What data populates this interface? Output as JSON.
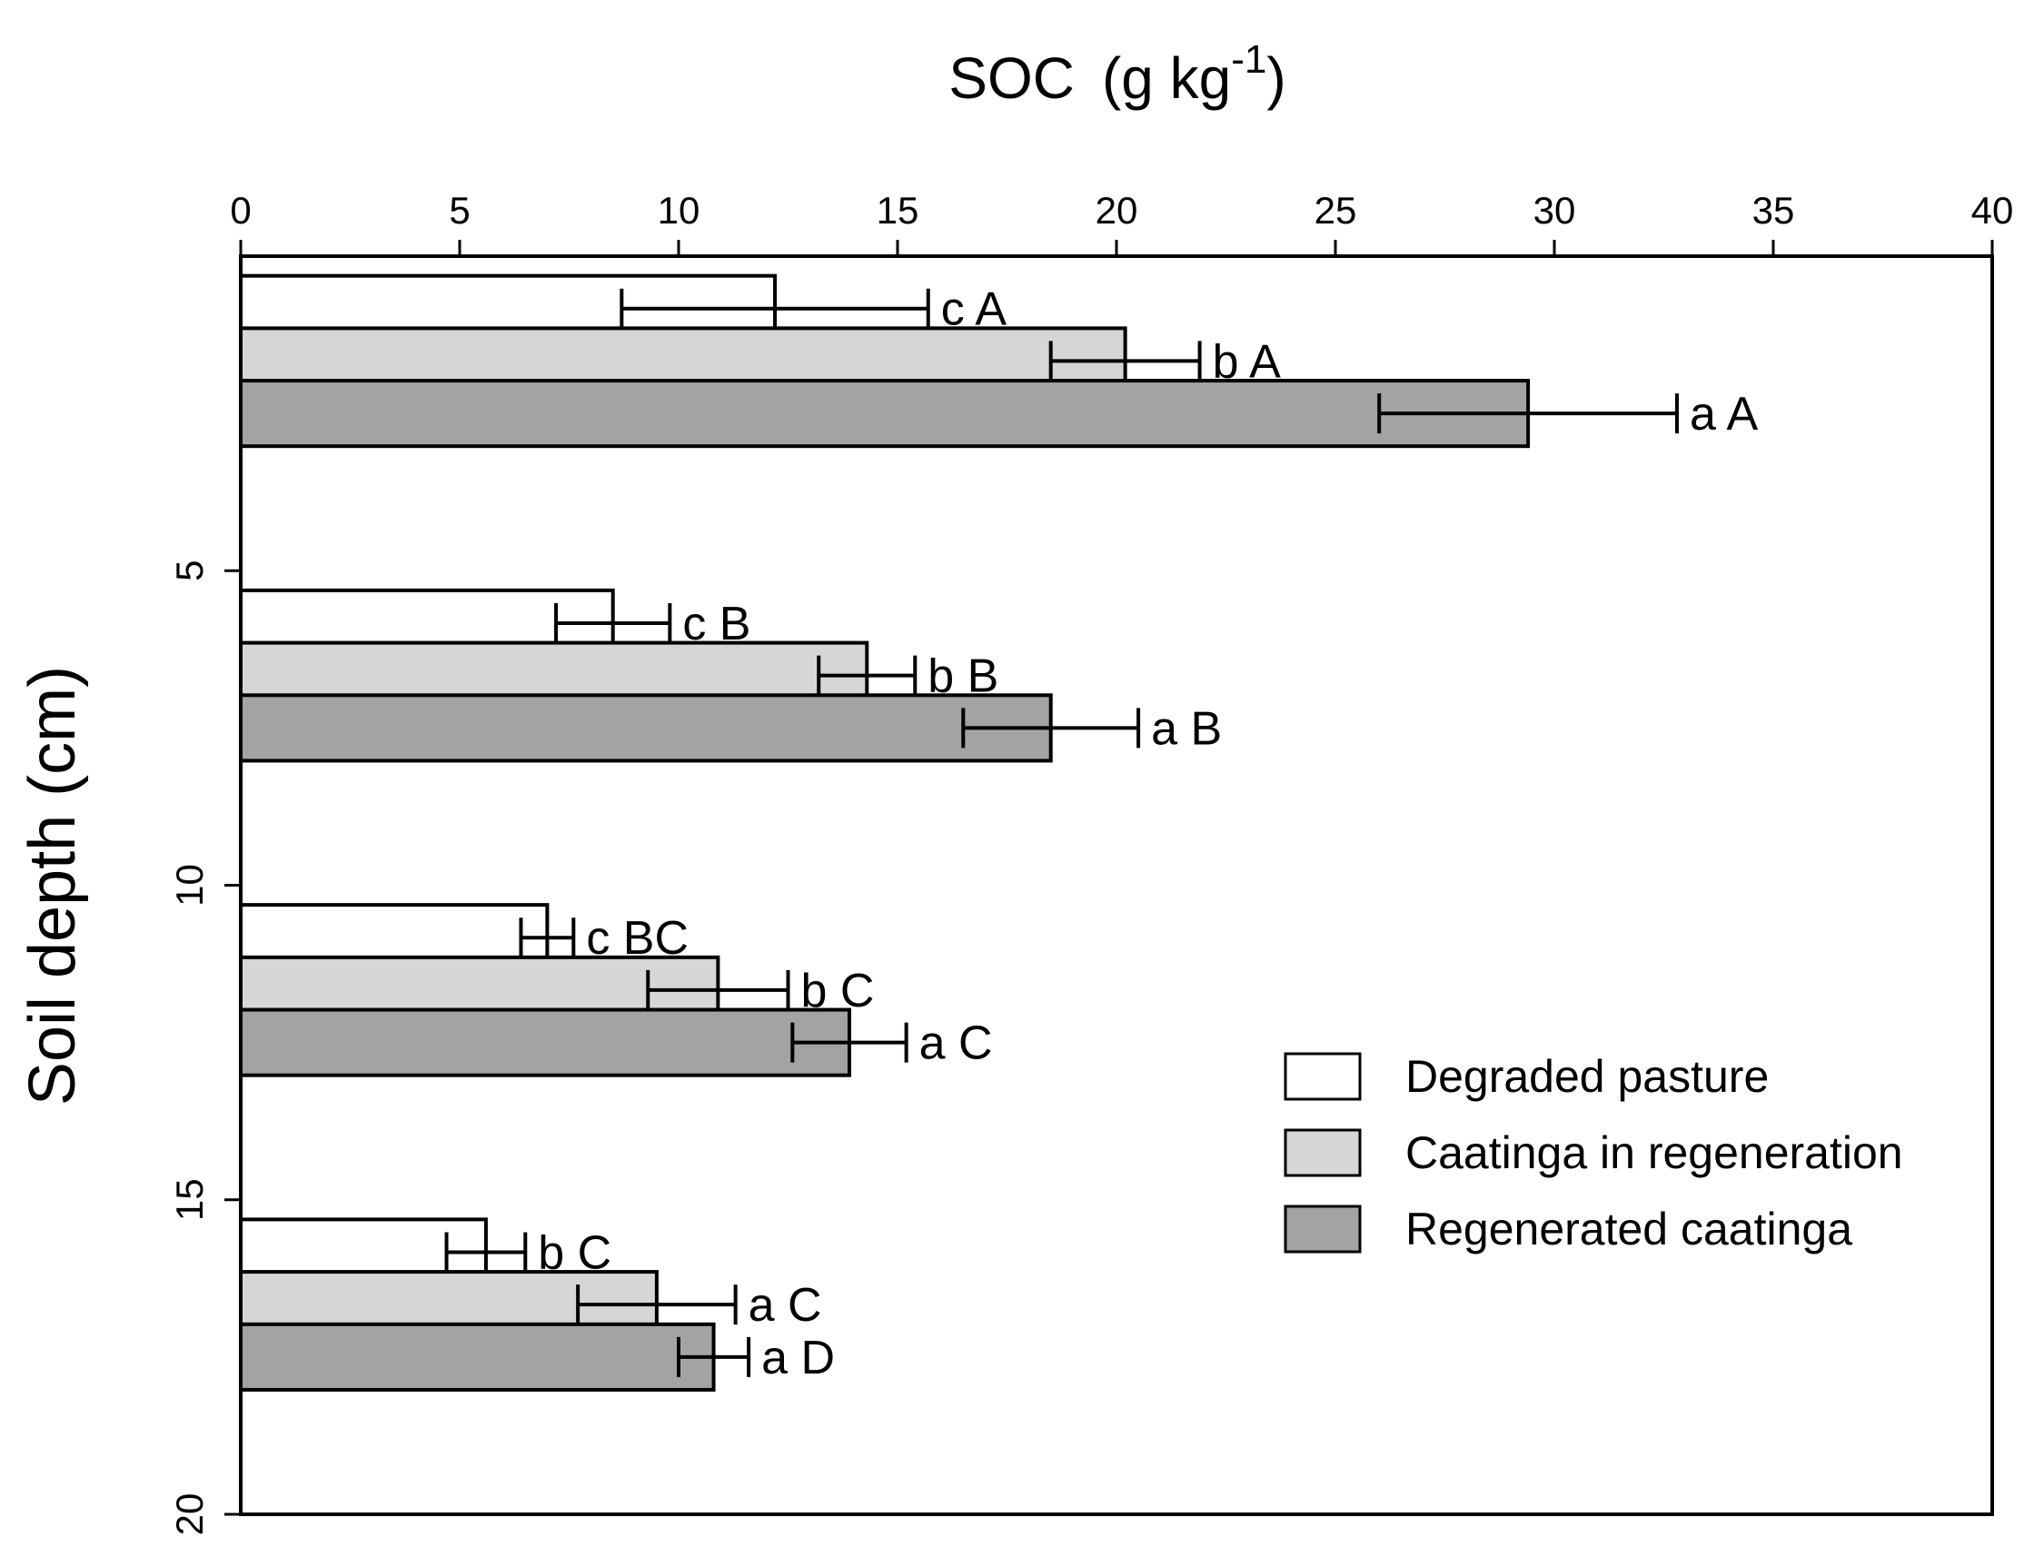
{
  "chart_data": {
    "type": "bar",
    "orientation": "horizontal",
    "title": "",
    "xlabel": "SOC",
    "xlabel_unit_base": "(g kg",
    "xlabel_unit_sup": "-1",
    "xlabel_unit_close": ")",
    "ylabel": "Soil depth (cm)",
    "xlim": [
      0,
      40
    ],
    "ylim": [
      0,
      20
    ],
    "x_ticks": [
      0,
      5,
      10,
      15,
      20,
      25,
      30,
      35,
      40
    ],
    "y_ticks": [
      5,
      10,
      15,
      20
    ],
    "grid": false,
    "legend_position": "bottom-right",
    "groups": [
      {
        "depth_range": [
          0,
          5
        ],
        "values": [
          12.2,
          20.2,
          29.4
        ],
        "errors": [
          3.5,
          1.7,
          3.4
        ],
        "labels": [
          "c A",
          "b A",
          "a A"
        ]
      },
      {
        "depth_range": [
          5,
          10
        ],
        "values": [
          8.5,
          14.3,
          18.5
        ],
        "errors": [
          1.3,
          1.1,
          2.0
        ],
        "labels": [
          "c B",
          "b B",
          "a B"
        ]
      },
      {
        "depth_range": [
          10,
          15
        ],
        "values": [
          7.0,
          10.9,
          13.9
        ],
        "errors": [
          0.6,
          1.6,
          1.3
        ],
        "labels": [
          "c BC",
          "b C",
          "a C"
        ]
      },
      {
        "depth_range": [
          15,
          20
        ],
        "values": [
          5.6,
          9.5,
          10.8
        ],
        "errors": [
          0.9,
          1.8,
          0.8
        ],
        "labels": [
          "b C",
          "a C",
          "a D"
        ]
      }
    ],
    "series": [
      {
        "name": "Degraded pasture",
        "color": "#ffffff"
      },
      {
        "name": "Caatinga in regeneration",
        "color": "#d6d6d6"
      },
      {
        "name": "Regenerated caatinga",
        "color": "#a3a3a3"
      }
    ]
  }
}
